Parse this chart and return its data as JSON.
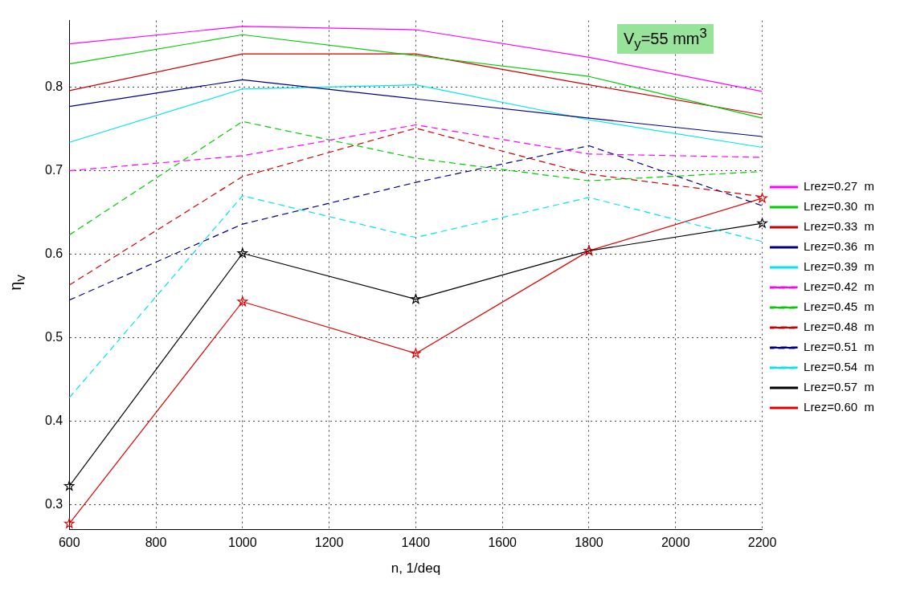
{
  "chart_data": {
    "type": "line",
    "xlabel": "n, 1/deq",
    "ylabel": "η$_{v}$",
    "annotations": [
      "V$_{y}$=55  mm$^{3}$"
    ],
    "x": [
      600,
      1000,
      1400,
      1800,
      2200
    ],
    "xlim": [
      600,
      2200
    ],
    "xticks": [
      600,
      800,
      1000,
      1200,
      1400,
      1600,
      1800,
      2000,
      2200
    ],
    "ylim": [
      0.27,
      0.88
    ],
    "yticks": [
      0.3,
      0.4,
      0.5,
      0.6,
      0.7,
      0.8
    ],
    "grid": true,
    "legend": "right",
    "series": [
      {
        "name": "Lrez=0.27  m",
        "color": "#ff00ff",
        "line_style": "solid",
        "marker": "none",
        "values": [
          0.852,
          0.873,
          0.869,
          0.836,
          0.795
        ]
      },
      {
        "name": "Lrez=0.30  m",
        "color": "#00cc00",
        "line_style": "solid",
        "marker": "none",
        "values": [
          0.828,
          0.863,
          0.838,
          0.813,
          0.763
        ]
      },
      {
        "name": "Lrez=0.33  m",
        "color": "#cc0000",
        "line_style": "solid",
        "marker": "none",
        "values": [
          0.796,
          0.84,
          0.84,
          0.803,
          0.767
        ]
      },
      {
        "name": "Lrez=0.36  m",
        "color": "#000080",
        "line_style": "solid",
        "marker": "none",
        "values": [
          0.777,
          0.809,
          0.786,
          0.763,
          0.741
        ]
      },
      {
        "name": "Lrez=0.39  m",
        "color": "#00e5ee",
        "line_style": "solid",
        "marker": "none",
        "values": [
          0.734,
          0.798,
          0.803,
          0.761,
          0.728
        ]
      },
      {
        "name": "Lrez=0.42  m",
        "color": "#ff00ff",
        "line_style": "dashed",
        "marker": "none",
        "values": [
          0.7,
          0.718,
          0.755,
          0.72,
          0.716
        ]
      },
      {
        "name": "Lrez=0.45  m",
        "color": "#00cc00",
        "line_style": "dashed",
        "marker": "none",
        "values": [
          0.623,
          0.759,
          0.715,
          0.688,
          0.699
        ]
      },
      {
        "name": "Lrez=0.48  m",
        "color": "#cc0000",
        "line_style": "dashed",
        "marker": "none",
        "values": [
          0.563,
          0.693,
          0.751,
          0.696,
          0.669
        ]
      },
      {
        "name": "Lrez=0.51  m",
        "color": "#000080",
        "line_style": "dashed",
        "marker": "none",
        "values": [
          0.545,
          0.636,
          0.686,
          0.73,
          0.658
        ]
      },
      {
        "name": "Lrez=0.54  m",
        "color": "#00e5ee",
        "line_style": "dashed",
        "marker": "none",
        "values": [
          0.428,
          0.67,
          0.62,
          0.668,
          0.615
        ]
      },
      {
        "name": "Lrez=0.57  m",
        "color": "#000000",
        "line_style": "solid",
        "marker": "star",
        "values": [
          0.322,
          0.601,
          0.546,
          0.604,
          0.637
        ]
      },
      {
        "name": "Lrez=0.60  m",
        "color": "#dd0000",
        "line_style": "solid",
        "marker": "star",
        "values": [
          0.277,
          0.543,
          0.481,
          0.604,
          0.667
        ]
      }
    ]
  }
}
